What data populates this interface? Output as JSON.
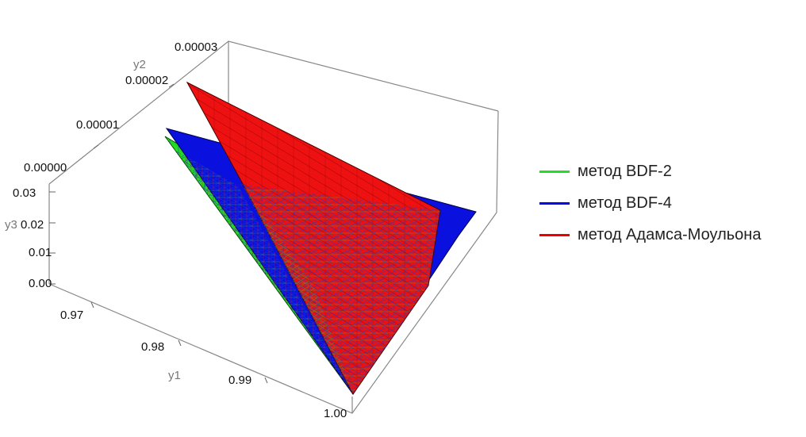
{
  "chart_data": {
    "type": "3d-surface",
    "axes": {
      "y1": {
        "label": "y1",
        "ticks": [
          "0.97",
          "0.98",
          "0.99",
          "1.00"
        ],
        "range": [
          0.965,
          1.0
        ]
      },
      "y2": {
        "label": "y2",
        "ticks": [
          "0.00000",
          "0.00001",
          "0.00002",
          "0.00003"
        ],
        "range": [
          0,
          3e-05
        ]
      },
      "y3": {
        "label": "y3",
        "ticks": [
          "0.00",
          "0.01",
          "0.02",
          "0.03"
        ],
        "range": [
          0,
          0.03
        ]
      }
    },
    "series": [
      {
        "name": "метод BDF-2",
        "color": "#22dd22"
      },
      {
        "name": "метод BDF-4",
        "color": "#0000ee"
      },
      {
        "name": "метод Адамса-Моульона",
        "color": "#ee0000"
      }
    ],
    "legend_position": "right",
    "box": true
  }
}
